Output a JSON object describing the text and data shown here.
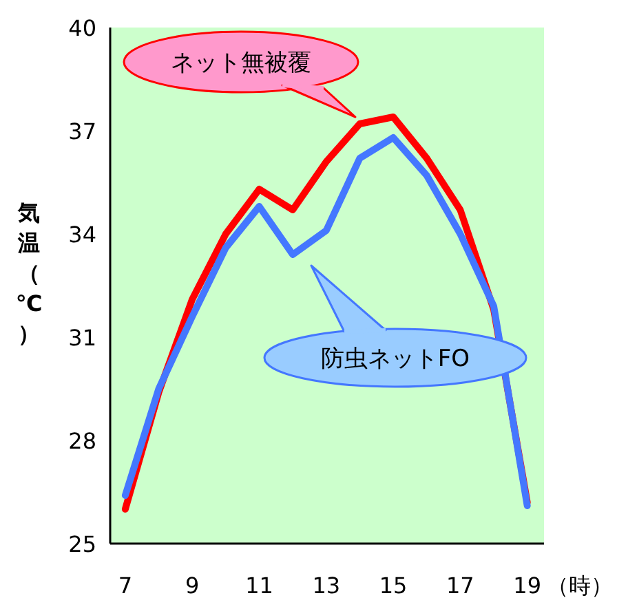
{
  "chart_data": {
    "type": "line",
    "ylabel": "気温（℃）",
    "xlabel": "（時）",
    "x": [
      7,
      8,
      9,
      10,
      11,
      12,
      13,
      14,
      15,
      16,
      17,
      18,
      19
    ],
    "xlim": [
      6.55,
      19.5
    ],
    "xticks": [
      7,
      9,
      11,
      13,
      15,
      17,
      19
    ],
    "ylim": [
      25,
      40
    ],
    "yticks": [
      25,
      28,
      31,
      34,
      37,
      40
    ],
    "grid": false,
    "legend": false,
    "marker": "none",
    "line_style": "solid",
    "series": [
      {
        "name": "ネット無被覆",
        "color": "#ff0000",
        "values": [
          26.0,
          29.4,
          32.1,
          34.0,
          35.3,
          34.7,
          36.1,
          37.2,
          37.4,
          36.2,
          34.7,
          31.8,
          26.2
        ]
      },
      {
        "name": "防虫ネットFO",
        "color": "#4477ff",
        "values": [
          26.4,
          29.5,
          31.6,
          33.6,
          34.8,
          33.4,
          34.1,
          36.2,
          36.8,
          35.7,
          34.0,
          31.9,
          26.1
        ]
      }
    ]
  }
}
